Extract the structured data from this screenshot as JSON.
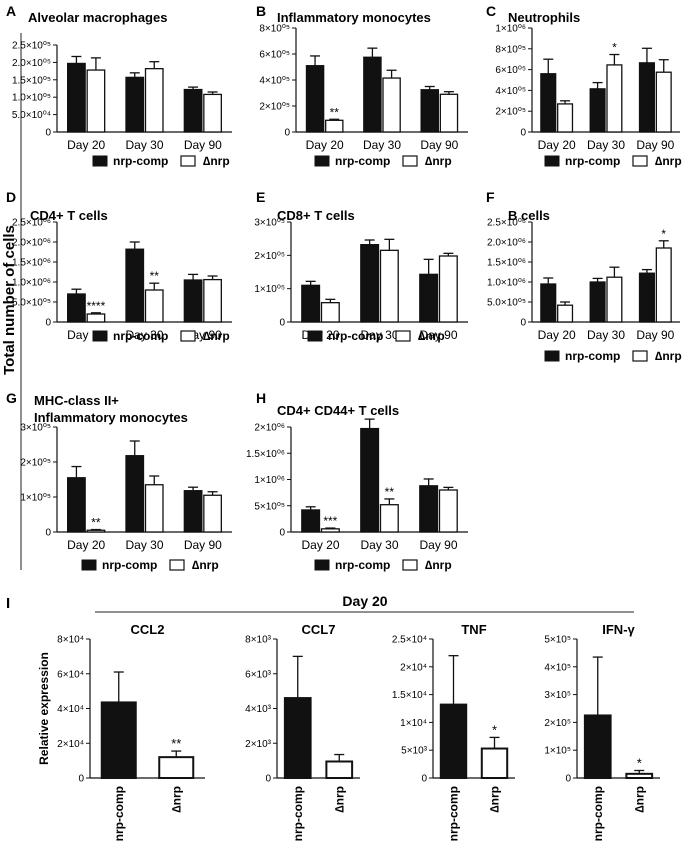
{
  "figure": {
    "y_axis_label": "Total number of cells",
    "legend_labels": [
      "nrp-comp",
      "∆nrp"
    ],
    "section_i_title": "Day 20"
  },
  "chart_data": [
    {
      "type": "bar",
      "panel": "A",
      "title": "Alveolar macrophages",
      "categories": [
        "Day 20",
        "Day 30",
        "Day 90"
      ],
      "ylim": [
        0,
        250000
      ],
      "yticks": [
        0,
        50000,
        100000,
        150000,
        200000,
        250000
      ],
      "ytick_labels": [
        "0",
        "5.0×10⁰⁴",
        "1.0×10⁰⁵",
        "1.5×10⁰⁵",
        "2.0×10⁰⁵",
        "2.5×10⁰⁵"
      ],
      "series": [
        {
          "name": "nrp-comp",
          "values": [
            197000,
            157000,
            122000
          ],
          "errors": [
            20000,
            13000,
            7000
          ]
        },
        {
          "name": "∆nrp",
          "values": [
            178000,
            182000,
            108000
          ],
          "errors": [
            35000,
            20000,
            7000
          ]
        }
      ],
      "annotations": [],
      "legend": "bottom"
    },
    {
      "type": "bar",
      "panel": "B",
      "title": "Inflammatory monocytes",
      "categories": [
        "Day 20",
        "Day 30",
        "Day 90"
      ],
      "ylim": [
        0,
        800000
      ],
      "yticks": [
        0,
        200000,
        400000,
        600000,
        800000
      ],
      "ytick_labels": [
        "0",
        "2×10⁰⁵",
        "4×10⁰⁵",
        "6×10⁰⁵",
        "8×10⁰⁵"
      ],
      "series": [
        {
          "name": "nrp-comp",
          "values": [
            510000,
            575000,
            325000
          ],
          "errors": [
            75000,
            70000,
            25000
          ]
        },
        {
          "name": "∆nrp",
          "values": [
            90000,
            415000,
            290000
          ],
          "errors": [
            8000,
            60000,
            20000
          ]
        }
      ],
      "annotations": [
        {
          "category": 0,
          "series": 1,
          "text": "**"
        }
      ],
      "legend": "bottom"
    },
    {
      "type": "bar",
      "panel": "C",
      "title": "Neutrophils",
      "categories": [
        "Day 20",
        "Day 30",
        "Day 90"
      ],
      "ylim": [
        0,
        1000000
      ],
      "yticks": [
        0,
        200000,
        400000,
        600000,
        800000,
        1000000
      ],
      "ytick_labels": [
        "0",
        "2×10⁰⁵",
        "4×10⁰⁵",
        "6×10⁰⁵",
        "8×10⁰⁵",
        "1×10⁰⁶"
      ],
      "series": [
        {
          "name": "nrp-comp",
          "values": [
            560000,
            415000,
            665000
          ],
          "errors": [
            140000,
            60000,
            140000
          ]
        },
        {
          "name": "∆nrp",
          "values": [
            270000,
            645000,
            575000
          ],
          "errors": [
            30000,
            100000,
            120000
          ]
        }
      ],
      "annotations": [
        {
          "category": 1,
          "series": 1,
          "text": "*"
        }
      ],
      "legend": "bottom"
    },
    {
      "type": "bar",
      "panel": "D",
      "title": "CD4+ T cells",
      "categories": [
        "Day 20",
        "Day 30",
        "Day 90"
      ],
      "ylim": [
        0,
        2500000
      ],
      "yticks": [
        0,
        500000,
        1000000,
        1500000,
        2000000,
        2500000
      ],
      "ytick_labels": [
        "0",
        "5.0×10⁰⁵",
        "1.0×10⁰⁶",
        "1.5×10⁰⁶",
        "2.0×10⁰⁶",
        "2.5×10⁰⁶"
      ],
      "series": [
        {
          "name": "nrp-comp",
          "values": [
            700000,
            1820000,
            1050000
          ],
          "errors": [
            120000,
            180000,
            140000
          ]
        },
        {
          "name": "∆nrp",
          "values": [
            200000,
            800000,
            1060000
          ],
          "errors": [
            30000,
            170000,
            90000
          ]
        }
      ],
      "annotations": [
        {
          "category": 0,
          "series": 1,
          "text": "****"
        },
        {
          "category": 1,
          "series": 1,
          "text": "**"
        }
      ],
      "legend": "bottom"
    },
    {
      "type": "bar",
      "panel": "E",
      "title": "CD8+ T cells",
      "categories": [
        "Day 20",
        "Day 30",
        "Day 90"
      ],
      "ylim": [
        0,
        300000
      ],
      "yticks": [
        0,
        100000,
        200000,
        300000
      ],
      "ytick_labels": [
        "0",
        "1×10⁰⁵",
        "2×10⁰⁵",
        "3×10⁰⁵"
      ],
      "series": [
        {
          "name": "nrp-comp",
          "values": [
            110000,
            232000,
            143000
          ],
          "errors": [
            12000,
            14000,
            45000
          ]
        },
        {
          "name": "∆nrp",
          "values": [
            58000,
            215000,
            198000
          ],
          "errors": [
            10000,
            33000,
            8000
          ]
        }
      ],
      "annotations": [],
      "legend": "bottom"
    },
    {
      "type": "bar",
      "panel": "F",
      "title": "B cells",
      "categories": [
        "Day 20",
        "Day 30",
        "Day 90"
      ],
      "ylim": [
        0,
        2500000
      ],
      "yticks": [
        0,
        500000,
        1000000,
        1500000,
        2000000,
        2500000
      ],
      "ytick_labels": [
        "0",
        "5.0×10⁰⁵",
        "1.0×10⁰⁶",
        "1.5×10⁰⁶",
        "2.0×10⁰⁶",
        "2.5×10⁰⁶"
      ],
      "series": [
        {
          "name": "nrp-comp",
          "values": [
            950000,
            1000000,
            1220000
          ],
          "errors": [
            150000,
            90000,
            90000
          ]
        },
        {
          "name": "∆nrp",
          "values": [
            420000,
            1120000,
            1850000
          ],
          "errors": [
            80000,
            250000,
            180000
          ]
        }
      ],
      "annotations": [
        {
          "category": 2,
          "series": 1,
          "text": "*"
        }
      ],
      "legend": "bottom"
    },
    {
      "type": "bar",
      "panel": "G",
      "title": "MHC-class II+\nInflammatory monocytes",
      "categories": [
        "Day 20",
        "Day 30",
        "Day 90"
      ],
      "ylim": [
        0,
        300000
      ],
      "yticks": [
        0,
        100000,
        200000,
        300000
      ],
      "ytick_labels": [
        "0",
        "1×10⁰⁵",
        "2×10⁰⁵",
        "3×10⁰⁵"
      ],
      "series": [
        {
          "name": "nrp-comp",
          "values": [
            155000,
            218000,
            118000
          ],
          "errors": [
            32000,
            42000,
            10000
          ]
        },
        {
          "name": "∆nrp",
          "values": [
            5000,
            135000,
            105000
          ],
          "errors": [
            2000,
            25000,
            10000
          ]
        }
      ],
      "annotations": [
        {
          "category": 0,
          "series": 1,
          "text": "**"
        }
      ],
      "legend": "bottom"
    },
    {
      "type": "bar",
      "panel": "H",
      "title": "CD4+ CD44+ T cells",
      "categories": [
        "Day 20",
        "Day 30",
        "Day 90"
      ],
      "ylim": [
        0,
        2000000
      ],
      "yticks": [
        0,
        500000,
        1000000,
        1500000,
        2000000
      ],
      "ytick_labels": [
        "0",
        "5×10⁰⁵",
        "1×10⁰⁶",
        "1.5×10⁰⁶",
        "2×10⁰⁶"
      ],
      "series": [
        {
          "name": "nrp-comp",
          "values": [
            420000,
            1970000,
            880000
          ],
          "errors": [
            60000,
            180000,
            130000
          ]
        },
        {
          "name": "∆nrp",
          "values": [
            60000,
            520000,
            800000
          ],
          "errors": [
            15000,
            110000,
            50000
          ]
        }
      ],
      "annotations": [
        {
          "category": 0,
          "series": 1,
          "text": "***"
        },
        {
          "category": 1,
          "series": 1,
          "text": "**"
        }
      ],
      "legend": "bottom"
    },
    {
      "type": "bar",
      "panel": "I",
      "title": "CCL2",
      "ylabel": "Relative expression",
      "categories": [
        "nrp-comp",
        "∆nrp"
      ],
      "ylim": [
        0,
        80000
      ],
      "yticks": [
        0,
        20000,
        40000,
        60000,
        80000
      ],
      "ytick_labels": [
        "0",
        "2×10⁴",
        "4×10⁴",
        "6×10⁴",
        "8×10⁴"
      ],
      "values": [
        43500,
        12000
      ],
      "errors": [
        17500,
        3500
      ],
      "annotations": [
        {
          "category": 1,
          "text": "**"
        }
      ]
    },
    {
      "type": "bar",
      "panel": "I",
      "title": "CCL7",
      "categories": [
        "nrp-comp",
        "∆nrp"
      ],
      "ylim": [
        0,
        8000
      ],
      "yticks": [
        0,
        2000,
        4000,
        6000,
        8000
      ],
      "ytick_labels": [
        "0",
        "2×10³",
        "4×10³",
        "6×10³",
        "8×10³"
      ],
      "values": [
        4600,
        950
      ],
      "errors": [
        2400,
        400
      ],
      "annotations": []
    },
    {
      "type": "bar",
      "panel": "I",
      "title": "TNF",
      "categories": [
        "nrp-comp",
        "∆nrp"
      ],
      "ylim": [
        0,
        25000
      ],
      "yticks": [
        0,
        5000,
        10000,
        15000,
        20000,
        25000
      ],
      "ytick_labels": [
        "0",
        "5×10³",
        "1×10⁴",
        "1.5×10⁴",
        "2×10⁴",
        "2.5×10⁴"
      ],
      "values": [
        13200,
        5300
      ],
      "errors": [
        8800,
        2000
      ],
      "annotations": [
        {
          "category": 1,
          "text": "*"
        }
      ]
    },
    {
      "type": "bar",
      "panel": "I",
      "title": "IFN-γ",
      "categories": [
        "nrp-comp",
        "∆nrp"
      ],
      "ylim": [
        0,
        500000
      ],
      "yticks": [
        0,
        100000,
        200000,
        300000,
        400000,
        500000
      ],
      "ytick_labels": [
        "0",
        "1×10⁵",
        "2×10⁵",
        "3×10⁵",
        "4×10⁵",
        "5×10⁵"
      ],
      "values": [
        225000,
        15000
      ],
      "errors": [
        210000,
        12000
      ],
      "annotations": [
        {
          "category": 1,
          "text": "*"
        }
      ]
    }
  ]
}
